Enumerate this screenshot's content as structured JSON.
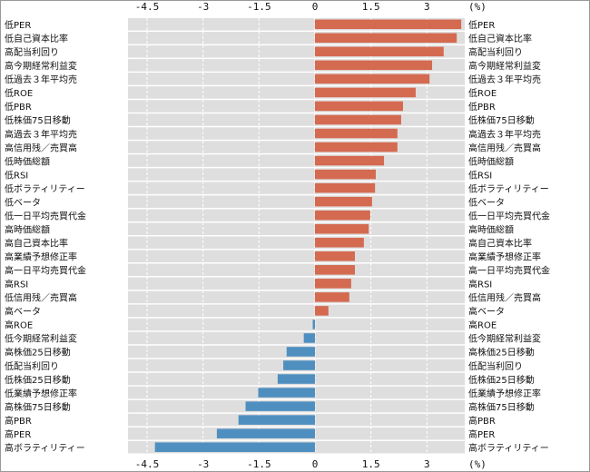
{
  "chart_data": {
    "type": "bar",
    "orientation": "horizontal",
    "unit_label": "(%)",
    "xlim": [
      -5.0,
      4.05
    ],
    "xticks": [
      -4.5,
      -3,
      -1.5,
      0,
      1.5,
      3
    ],
    "xtick_labels": [
      "-4.5",
      "-3",
      "-1.5",
      "0",
      "1.5",
      "3"
    ],
    "grid": true,
    "colors": {
      "positive": "#d46a50",
      "negative": "#4f8fc0",
      "band": "#dedede"
    },
    "categories": [
      "低PER",
      "低自己資本比率",
      "高配当利回り",
      "高今期経常利益変",
      "低過去３年平均売",
      "低ROE",
      "低PBR",
      "低株価75日移動",
      "高過去３年平均売",
      "高信用残／売買高",
      "低時価総額",
      "低RSI",
      "低ボラティリティー",
      "低ベータ",
      "低一日平均売買代金",
      "高時価総額",
      "高自己資本比率",
      "高業績予想修正率",
      "高一日平均売買代金",
      "高RSI",
      "低信用残／売買高",
      "高ベータ",
      "高ROE",
      "低今期経常利益変",
      "高株価25日移動",
      "低配当利回り",
      "低株価25日移動",
      "低業績予想修正率",
      "高株価75日移動",
      "高PBR",
      "高PER",
      "高ボラティリティー"
    ],
    "values": [
      3.92,
      3.8,
      3.45,
      3.14,
      3.07,
      2.7,
      2.36,
      2.31,
      2.21,
      2.21,
      1.85,
      1.63,
      1.61,
      1.53,
      1.48,
      1.44,
      1.31,
      1.07,
      1.07,
      0.97,
      0.92,
      0.36,
      -0.06,
      -0.3,
      -0.76,
      -0.85,
      -1.0,
      -1.52,
      -1.86,
      -2.05,
      -2.63,
      -4.29
    ]
  }
}
